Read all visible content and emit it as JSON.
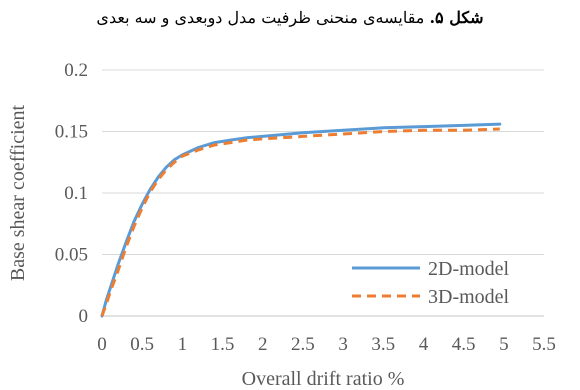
{
  "caption": {
    "lead": "شکل ۵.",
    "text": " مقایسه‌ی منحنی ظرفیت مدل دوبعدی و سه بعدی"
  },
  "chart_data": {
    "type": "line",
    "xlabel": "Overall drift ratio %",
    "ylabel": "Base shear coefficient",
    "xlim": [
      0,
      5.5
    ],
    "ylim": [
      0,
      0.2
    ],
    "xticks": [
      "0",
      "0.5",
      "1",
      "1.5",
      "2",
      "2.5",
      "3",
      "3.5",
      "4",
      "4.5",
      "5",
      "5.5"
    ],
    "yticks": [
      "0",
      "0.05",
      "0.1",
      "0.15",
      "0.2"
    ],
    "grid": "horizontal",
    "legend": "bottom-right",
    "series": [
      {
        "name": "2D-model",
        "color": "#5B9BD5",
        "style": "solid",
        "x": [
          0,
          0.05,
          0.1,
          0.2,
          0.3,
          0.4,
          0.5,
          0.6,
          0.7,
          0.8,
          0.9,
          1.0,
          1.2,
          1.4,
          1.6,
          1.8,
          2.0,
          2.5,
          3.0,
          3.5,
          4.0,
          4.5,
          4.95
        ],
        "y": [
          0,
          0.012,
          0.022,
          0.042,
          0.06,
          0.077,
          0.091,
          0.103,
          0.113,
          0.121,
          0.127,
          0.131,
          0.137,
          0.141,
          0.143,
          0.145,
          0.146,
          0.149,
          0.151,
          0.153,
          0.154,
          0.155,
          0.156
        ]
      },
      {
        "name": "3D-model",
        "color": "#ED7D31",
        "style": "dashed",
        "x": [
          0,
          0.05,
          0.1,
          0.2,
          0.3,
          0.4,
          0.5,
          0.6,
          0.7,
          0.8,
          0.9,
          1.0,
          1.2,
          1.4,
          1.6,
          1.8,
          2.0,
          2.5,
          3.0,
          3.5,
          4.0,
          4.5,
          4.95
        ],
        "y": [
          0,
          0.009,
          0.019,
          0.037,
          0.056,
          0.073,
          0.088,
          0.101,
          0.111,
          0.119,
          0.125,
          0.13,
          0.135,
          0.139,
          0.141,
          0.143,
          0.144,
          0.146,
          0.148,
          0.15,
          0.151,
          0.151,
          0.152
        ]
      }
    ]
  }
}
